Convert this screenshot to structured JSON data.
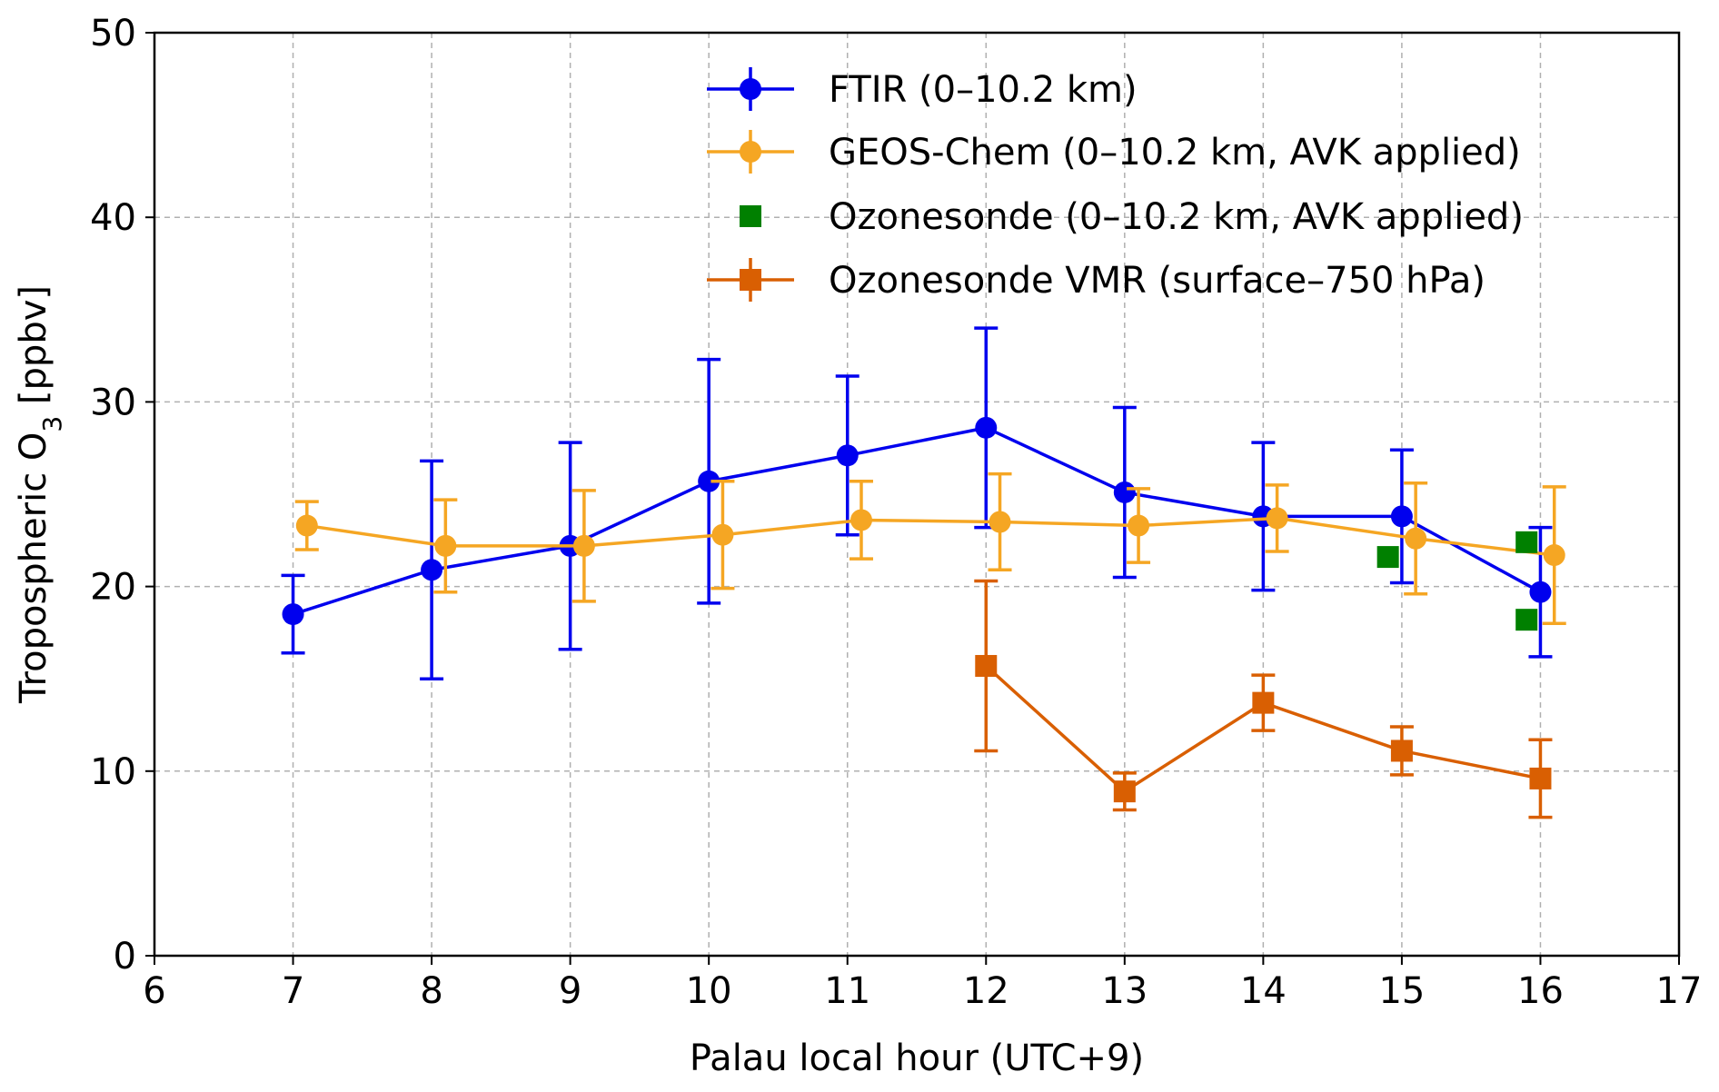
{
  "chart_data": {
    "type": "line",
    "title": "",
    "xlabel": "Palau local hour (UTC+9)",
    "ylabel_main": "Tropospheric O",
    "ylabel_sub": "3",
    "ylabel_unit": " [ppbv]",
    "xlim": [
      6,
      17
    ],
    "ylim": [
      0,
      50
    ],
    "xticks": [
      6,
      7,
      8,
      9,
      10,
      11,
      12,
      13,
      14,
      15,
      16,
      17
    ],
    "yticks": [
      0,
      10,
      20,
      30,
      40,
      50
    ],
    "grid": true,
    "legend_position": "top-center",
    "series": [
      {
        "name": "FTIR (0–10.2 km)",
        "color": "#0000ee",
        "marker": "circle",
        "line": true,
        "x": [
          7,
          8,
          9,
          10,
          11,
          12,
          13,
          14,
          15,
          16
        ],
        "y": [
          18.5,
          20.9,
          22.2,
          25.7,
          27.1,
          28.6,
          25.1,
          23.8,
          23.8,
          19.7
        ],
        "err": [
          2.1,
          5.9,
          5.6,
          6.6,
          4.3,
          5.4,
          4.6,
          4.0,
          3.6,
          3.5
        ]
      },
      {
        "name": "GEOS-Chem (0–10.2 km, AVK applied)",
        "color": "#f5a623",
        "marker": "circle",
        "line": true,
        "x": [
          7.1,
          8.1,
          9.1,
          10.1,
          11.1,
          12.1,
          13.1,
          14.1,
          15.1,
          16.1
        ],
        "y": [
          23.3,
          22.2,
          22.2,
          22.8,
          23.6,
          23.5,
          23.3,
          23.7,
          22.6,
          21.7
        ],
        "err": [
          1.3,
          2.5,
          3.0,
          2.9,
          2.1,
          2.6,
          2.0,
          1.8,
          3.0,
          3.7
        ]
      },
      {
        "name": "Ozonesonde (0–10.2 km, AVK applied)",
        "color": "#008000",
        "marker": "square",
        "line": false,
        "x": [
          14.9,
          15.9,
          15.9
        ],
        "y": [
          21.6,
          22.4,
          18.2
        ],
        "err": []
      },
      {
        "name": "Ozonesonde VMR (surface–750 hPa)",
        "color": "#d95f02",
        "marker": "square",
        "line": true,
        "x": [
          12,
          13,
          14,
          15,
          16
        ],
        "y": [
          15.7,
          8.9,
          13.7,
          11.1,
          9.6
        ],
        "err": [
          4.6,
          1.0,
          1.5,
          1.3,
          2.1
        ]
      }
    ]
  }
}
